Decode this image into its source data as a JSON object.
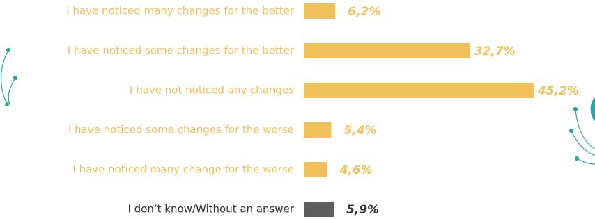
{
  "chart_data": {
    "type": "bar",
    "orientation": "horizontal",
    "categories": [
      "I have noticed many changes for the better",
      "I have noticed some changes for the better",
      "I have not noticed any changes",
      "I have noticed some changes for the worse",
      "I have noticed many change for the worse",
      "I don’t know/Without an answer"
    ],
    "values": [
      6.2,
      32.7,
      45.2,
      5.4,
      4.6,
      5.9
    ],
    "value_labels": [
      "6,2%",
      "32,7%",
      "45,2%",
      "5,4%",
      "4,6%",
      "5,9%"
    ],
    "colors": [
      "#f0c05a",
      "#f0c05a",
      "#f0c05a",
      "#f0c05a",
      "#f0c05a",
      "#5e5e5e"
    ]
  }
}
